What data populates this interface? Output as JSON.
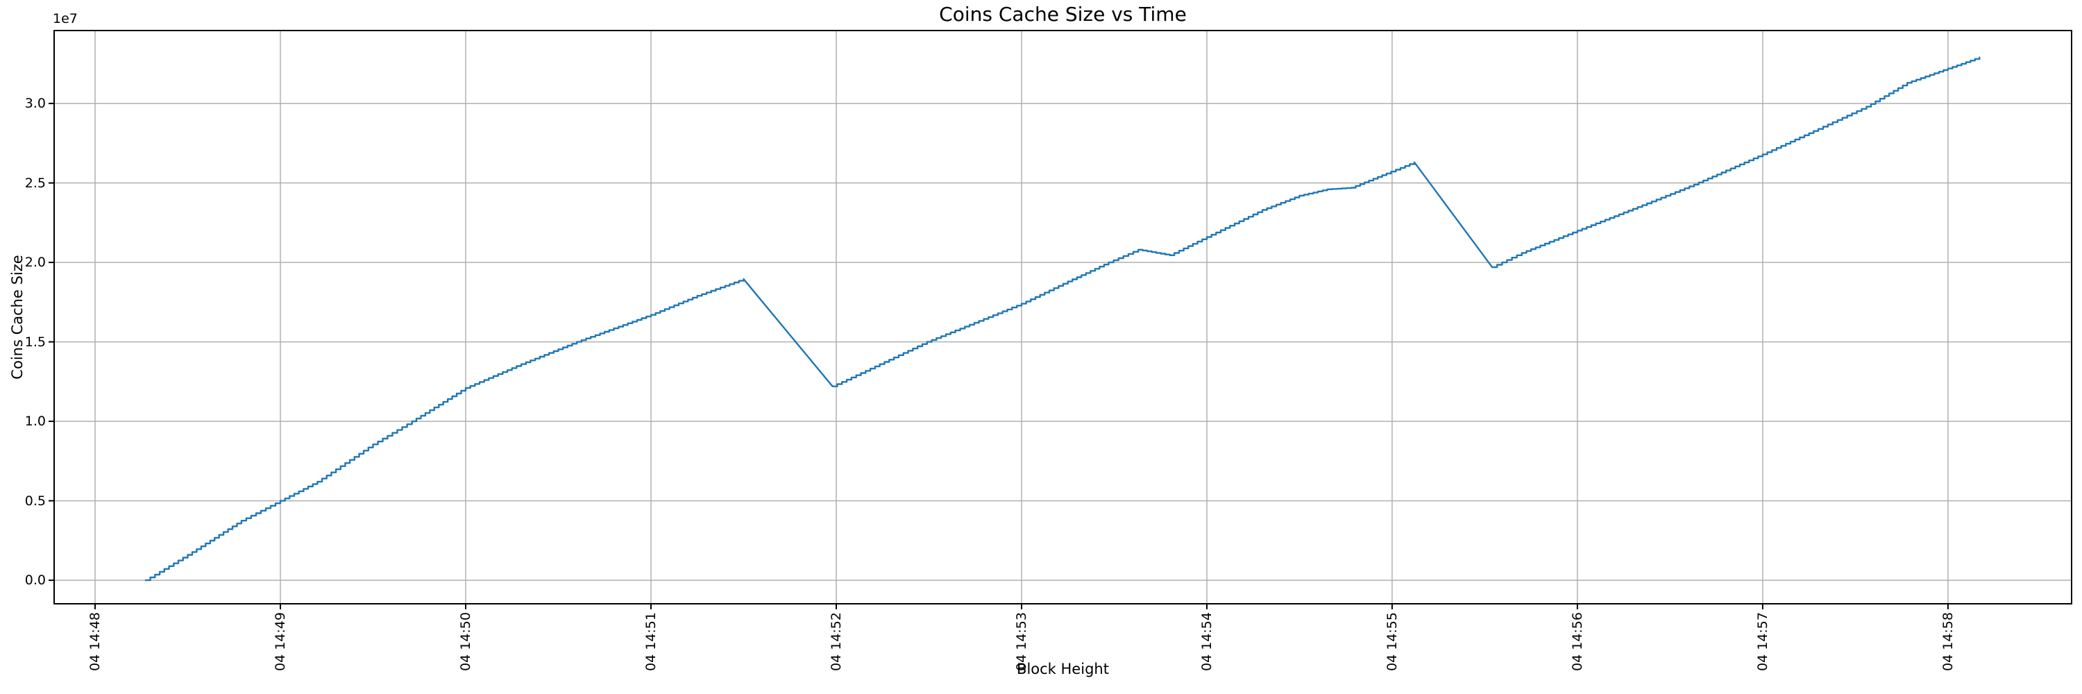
{
  "chart_data": {
    "type": "line",
    "title": "Coins Cache Size vs Time",
    "xlabel": "Block Height",
    "ylabel": "Coins Cache Size",
    "y_offset_label": "1e7",
    "y_scale_factor": 10000000,
    "x_unit": "minutes after 04 14:48",
    "line_color": "#1f77b4",
    "grid": true,
    "grid_color": "#b0b0b0",
    "spine_color": "#000000",
    "legend": "none",
    "xlim_minutes": [
      -0.221,
      10.667
    ],
    "ylim": [
      -0.148,
      3.459
    ],
    "x_ticks": [
      {
        "minute": 0,
        "label": "04 14:48"
      },
      {
        "minute": 1,
        "label": "04 14:49"
      },
      {
        "minute": 2,
        "label": "04 14:50"
      },
      {
        "minute": 3,
        "label": "04 14:51"
      },
      {
        "minute": 4,
        "label": "04 14:52"
      },
      {
        "minute": 5,
        "label": "04 14:53"
      },
      {
        "minute": 6,
        "label": "04 14:54"
      },
      {
        "minute": 7,
        "label": "04 14:55"
      },
      {
        "minute": 8,
        "label": "04 14:56"
      },
      {
        "minute": 9,
        "label": "04 14:57"
      },
      {
        "minute": 10,
        "label": "04 14:58"
      }
    ],
    "y_ticks": [
      {
        "value": 0.0,
        "label": "0.0"
      },
      {
        "value": 0.5,
        "label": "0.5"
      },
      {
        "value": 1.0,
        "label": "1.0"
      },
      {
        "value": 1.5,
        "label": "1.5"
      },
      {
        "value": 2.0,
        "label": "2.0"
      },
      {
        "value": 2.5,
        "label": "2.5"
      },
      {
        "value": 3.0,
        "label": "3.0"
      }
    ],
    "points": [
      [
        0.273,
        0.0
      ],
      [
        0.5,
        0.16
      ],
      [
        0.79,
        0.375
      ],
      [
        1.0,
        0.5
      ],
      [
        1.2,
        0.62
      ],
      [
        1.5,
        0.855
      ],
      [
        1.71,
        1.0
      ],
      [
        2.0,
        1.21
      ],
      [
        2.3,
        1.36
      ],
      [
        2.6,
        1.5
      ],
      [
        3.0,
        1.67
      ],
      [
        3.25,
        1.79
      ],
      [
        3.5,
        1.895
      ],
      [
        3.98,
        1.22
      ],
      [
        4.49,
        1.5
      ],
      [
        5.0,
        1.74
      ],
      [
        5.25,
        1.88
      ],
      [
        5.47,
        2.0
      ],
      [
        5.63,
        2.08
      ],
      [
        5.8,
        2.045
      ],
      [
        6.0,
        2.16
      ],
      [
        6.3,
        2.33
      ],
      [
        6.5,
        2.42
      ],
      [
        6.65,
        2.46
      ],
      [
        6.78,
        2.47
      ],
      [
        6.97,
        2.56
      ],
      [
        7.12,
        2.63
      ],
      [
        7.54,
        1.97
      ],
      [
        7.7,
        2.06
      ],
      [
        8.0,
        2.2
      ],
      [
        8.35,
        2.36
      ],
      [
        8.63,
        2.49
      ],
      [
        9.0,
        2.68
      ],
      [
        9.3,
        2.84
      ],
      [
        9.56,
        2.98
      ],
      [
        9.78,
        3.13
      ],
      [
        10.0,
        3.22
      ],
      [
        10.17,
        3.29
      ]
    ]
  }
}
